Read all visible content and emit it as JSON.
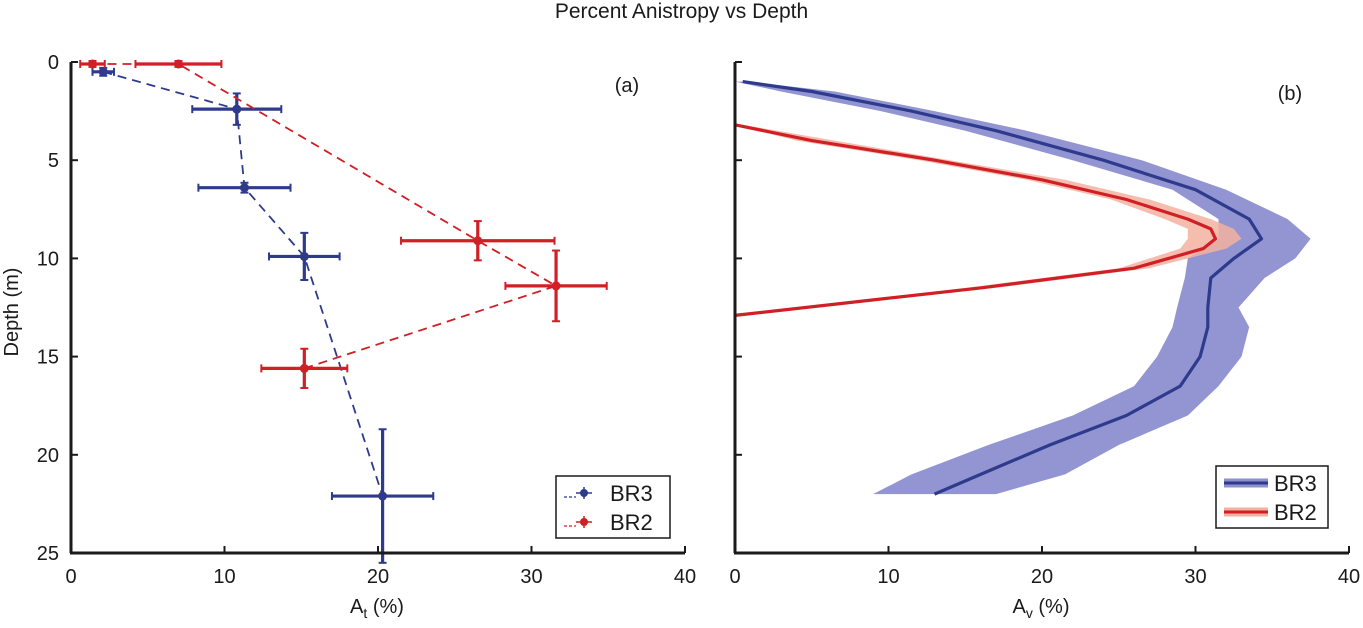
{
  "figure": {
    "title": "Percent Anistropy vs Depth"
  },
  "colors": {
    "blue": "#2e3a8c",
    "red": "#d11f26",
    "blue_band": "#8c8fd0",
    "red_band": "#f3b2a0",
    "axis": "#1a1a1a"
  },
  "chart_data": [
    {
      "type": "scatter",
      "panel_label": "(a)",
      "xlabel": "A",
      "xlabel_sub": "t",
      "xlabel_unit": " (%)",
      "ylabel": "Depth (m)",
      "xlim": [
        0,
        40
      ],
      "ylim": [
        0,
        25
      ],
      "y_reversed": true,
      "xticks": [
        0,
        10,
        20,
        30,
        40
      ],
      "yticks": [
        0,
        5,
        10,
        15,
        20,
        25
      ],
      "legend_position": "bottom-right",
      "series": [
        {
          "name": "BR3",
          "color": "blue",
          "line_style": "dashed",
          "points": [
            {
              "x": 2.1,
              "y": 0.5,
              "xerr": 0.7,
              "yerr": 0.2
            },
            {
              "x": 10.8,
              "y": 2.4,
              "xerr": 2.9,
              "yerr": 0.8
            },
            {
              "x": 11.3,
              "y": 6.4,
              "xerr": 3.0,
              "yerr": 0.25
            },
            {
              "x": 15.2,
              "y": 9.9,
              "xerr": 2.3,
              "yerr": 1.2
            },
            {
              "x": 20.3,
              "y": 22.1,
              "xerr": 3.3,
              "yerr": 3.4
            }
          ]
        },
        {
          "name": "BR2",
          "color": "red",
          "line_style": "dashed",
          "points": [
            {
              "x": 1.4,
              "y": 0.1,
              "xerr": 0.8,
              "yerr": 0.15
            },
            {
              "x": 7.0,
              "y": 0.1,
              "xerr": 2.8,
              "yerr": 0.15
            },
            {
              "x": 26.5,
              "y": 9.1,
              "xerr": 5.0,
              "yerr": 1.0
            },
            {
              "x": 31.6,
              "y": 11.4,
              "xerr": 3.3,
              "yerr": 1.8
            },
            {
              "x": 15.2,
              "y": 15.6,
              "xerr": 2.8,
              "yerr": 1.0
            }
          ]
        }
      ]
    },
    {
      "type": "line",
      "panel_label": "(b)",
      "xlabel": "A",
      "xlabel_sub": "v",
      "xlabel_unit": " (%)",
      "xlim": [
        0,
        40
      ],
      "ylim": [
        0,
        25
      ],
      "y_reversed": true,
      "xticks": [
        0,
        10,
        20,
        30,
        40
      ],
      "yticks": [
        0,
        5,
        10,
        15,
        20,
        25
      ],
      "legend_position": "bottom-right",
      "series": [
        {
          "name": "BR3",
          "color": "blue",
          "band_color": "blue_band",
          "points": [
            {
              "y": 1.0,
              "x": 0.5,
              "lo": 0.0,
              "hi": 0.8
            },
            {
              "y": 1.5,
              "x": 5.0,
              "lo": 3.0,
              "hi": 6.5
            },
            {
              "y": 2.5,
              "x": 11.5,
              "lo": 9.5,
              "hi": 13.0
            },
            {
              "y": 3.5,
              "x": 17.0,
              "lo": 15.0,
              "hi": 19.0
            },
            {
              "y": 5.0,
              "x": 24.0,
              "lo": 22.0,
              "hi": 26.5
            },
            {
              "y": 6.5,
              "x": 30.0,
              "lo": 28.5,
              "hi": 32.0
            },
            {
              "y": 8.0,
              "x": 33.5,
              "lo": 31.5,
              "hi": 36.0
            },
            {
              "y": 9.0,
              "x": 34.3,
              "lo": 31.5,
              "hi": 37.5
            },
            {
              "y": 10.0,
              "x": 32.5,
              "lo": 29.5,
              "hi": 36.5
            },
            {
              "y": 11.0,
              "x": 31.0,
              "lo": 29.3,
              "hi": 34.5
            },
            {
              "y": 12.5,
              "x": 30.8,
              "lo": 28.8,
              "hi": 32.8
            },
            {
              "y": 13.5,
              "x": 30.8,
              "lo": 28.5,
              "hi": 33.5
            },
            {
              "y": 15.0,
              "x": 30.3,
              "lo": 27.5,
              "hi": 33.0
            },
            {
              "y": 16.5,
              "x": 29.0,
              "lo": 26.0,
              "hi": 31.5
            },
            {
              "y": 18.0,
              "x": 25.5,
              "lo": 22.0,
              "hi": 29.5
            },
            {
              "y": 19.5,
              "x": 20.5,
              "lo": 16.5,
              "hi": 25.0
            },
            {
              "y": 21.0,
              "x": 16.0,
              "lo": 11.5,
              "hi": 21.5
            },
            {
              "y": 22.0,
              "x": 13.0,
              "lo": 9.0,
              "hi": 17.0
            }
          ]
        },
        {
          "name": "BR2",
          "color": "red",
          "band_color": "red_band",
          "points": [
            {
              "y": 3.2,
              "x": 0.0,
              "lo": 0.0,
              "hi": 0.5
            },
            {
              "y": 4.0,
              "x": 5.0,
              "lo": 4.0,
              "hi": 6.5
            },
            {
              "y": 5.0,
              "x": 13.0,
              "lo": 12.0,
              "hi": 14.0
            },
            {
              "y": 6.0,
              "x": 20.0,
              "lo": 19.0,
              "hi": 21.5
            },
            {
              "y": 7.0,
              "x": 25.5,
              "lo": 24.5,
              "hi": 27.0
            },
            {
              "y": 8.0,
              "x": 29.5,
              "lo": 28.0,
              "hi": 31.0
            },
            {
              "y": 8.5,
              "x": 31.0,
              "lo": 29.5,
              "hi": 32.5
            },
            {
              "y": 9.0,
              "x": 31.3,
              "lo": 29.5,
              "hi": 33.0
            },
            {
              "y": 9.5,
              "x": 30.5,
              "lo": 29.0,
              "hi": 32.0
            },
            {
              "y": 10.5,
              "x": 26.0,
              "lo": 25.0,
              "hi": 27.0
            },
            {
              "y": 11.5,
              "x": 16.0,
              "lo": 15.0,
              "hi": 17.0
            },
            {
              "y": 12.2,
              "x": 8.0,
              "lo": 7.5,
              "hi": 8.5
            },
            {
              "y": 12.9,
              "x": 0.0,
              "lo": 0.0,
              "hi": 0.4
            }
          ]
        }
      ]
    }
  ]
}
